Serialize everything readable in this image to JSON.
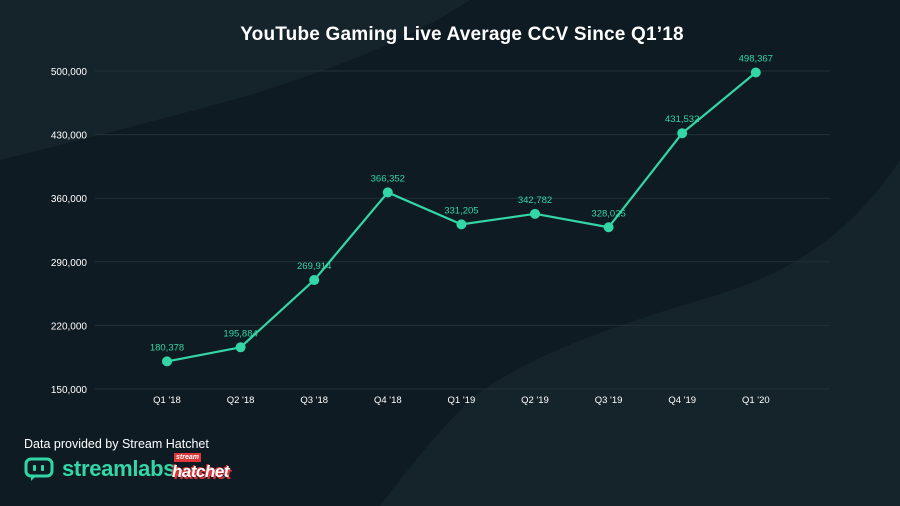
{
  "title": "YouTube Gaming Live Average CCV Since Q1’18",
  "credit": "Data provided by Stream Hatchet",
  "brands": {
    "streamlabs": "streamlabs",
    "hatchet_top": "stream",
    "hatchet_main": "hatchet"
  },
  "colors": {
    "background": "#0f1b22",
    "accent": "#33d6a6",
    "gridline": "#223038"
  },
  "chart_data": {
    "type": "line",
    "title": "YouTube Gaming Live Average CCV Since Q1’18",
    "xlabel": "",
    "ylabel": "",
    "categories": [
      "Q1 '18",
      "Q2 '18",
      "Q3 '18",
      "Q4 '18",
      "Q1 '19",
      "Q2 '19",
      "Q3 '19",
      "Q4 '19",
      "Q1 '20"
    ],
    "values": [
      180378,
      195884,
      269914,
      366352,
      331205,
      342782,
      328025,
      431532,
      498367
    ],
    "labels": [
      "180,378",
      "195,884",
      "269,914",
      "366,352",
      "331,205",
      "342,782",
      "328,025",
      "431,532",
      "498,367"
    ],
    "ylim": [
      150000,
      500000
    ],
    "yticks": [
      150000,
      220000,
      290000,
      360000,
      430000,
      500000
    ],
    "ytick_labels": [
      "150,000",
      "220,000",
      "290,000",
      "360,000",
      "430,000",
      "500,000"
    ],
    "grid": true,
    "legend": "none"
  }
}
